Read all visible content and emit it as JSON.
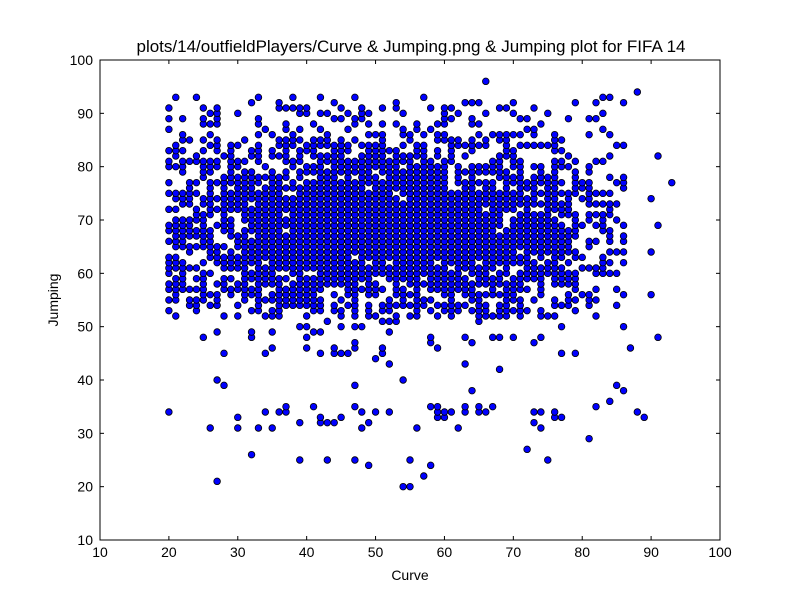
{
  "chart_data": {
    "type": "scatter",
    "title": "plots/14/outfieldPlayers/Curve & Jumping.png & Jumping plot for FIFA 14",
    "xlabel": "Curve",
    "ylabel": "Jumping",
    "xlim": [
      10,
      100
    ],
    "ylim": [
      10,
      100
    ],
    "xticks": [
      "10",
      "20",
      "30",
      "40",
      "50",
      "60",
      "70",
      "80",
      "90",
      "100"
    ],
    "yticks": [
      "10",
      "20",
      "30",
      "40",
      "50",
      "60",
      "70",
      "80",
      "90",
      "100"
    ],
    "grid": false,
    "legend": "none",
    "marker_color": "#0000ff",
    "marker_edge_color": "#000000",
    "dense_region": {
      "x_range": [
        20,
        86
      ],
      "y_range": [
        31,
        93
      ],
      "x_center": 52,
      "y_center": 68
    },
    "outliers": [
      {
        "x": 27,
        "y": 21
      },
      {
        "x": 54,
        "y": 20
      },
      {
        "x": 55,
        "y": 20
      },
      {
        "x": 57,
        "y": 22
      },
      {
        "x": 58,
        "y": 24
      },
      {
        "x": 55,
        "y": 25
      },
      {
        "x": 39,
        "y": 25
      },
      {
        "x": 43,
        "y": 25
      },
      {
        "x": 47,
        "y": 25
      },
      {
        "x": 49,
        "y": 24
      },
      {
        "x": 72,
        "y": 27
      },
      {
        "x": 75,
        "y": 25
      },
      {
        "x": 32,
        "y": 26
      },
      {
        "x": 66,
        "y": 96
      },
      {
        "x": 88,
        "y": 94
      },
      {
        "x": 83,
        "y": 93
      },
      {
        "x": 79,
        "y": 92
      },
      {
        "x": 91,
        "y": 82
      },
      {
        "x": 93,
        "y": 77
      },
      {
        "x": 91,
        "y": 69
      },
      {
        "x": 91,
        "y": 48
      },
      {
        "x": 90,
        "y": 56
      },
      {
        "x": 89,
        "y": 33
      },
      {
        "x": 88,
        "y": 34
      },
      {
        "x": 86,
        "y": 38
      },
      {
        "x": 84,
        "y": 36
      },
      {
        "x": 81,
        "y": 29
      },
      {
        "x": 87,
        "y": 46
      },
      {
        "x": 90,
        "y": 64
      },
      {
        "x": 90,
        "y": 74
      }
    ]
  }
}
